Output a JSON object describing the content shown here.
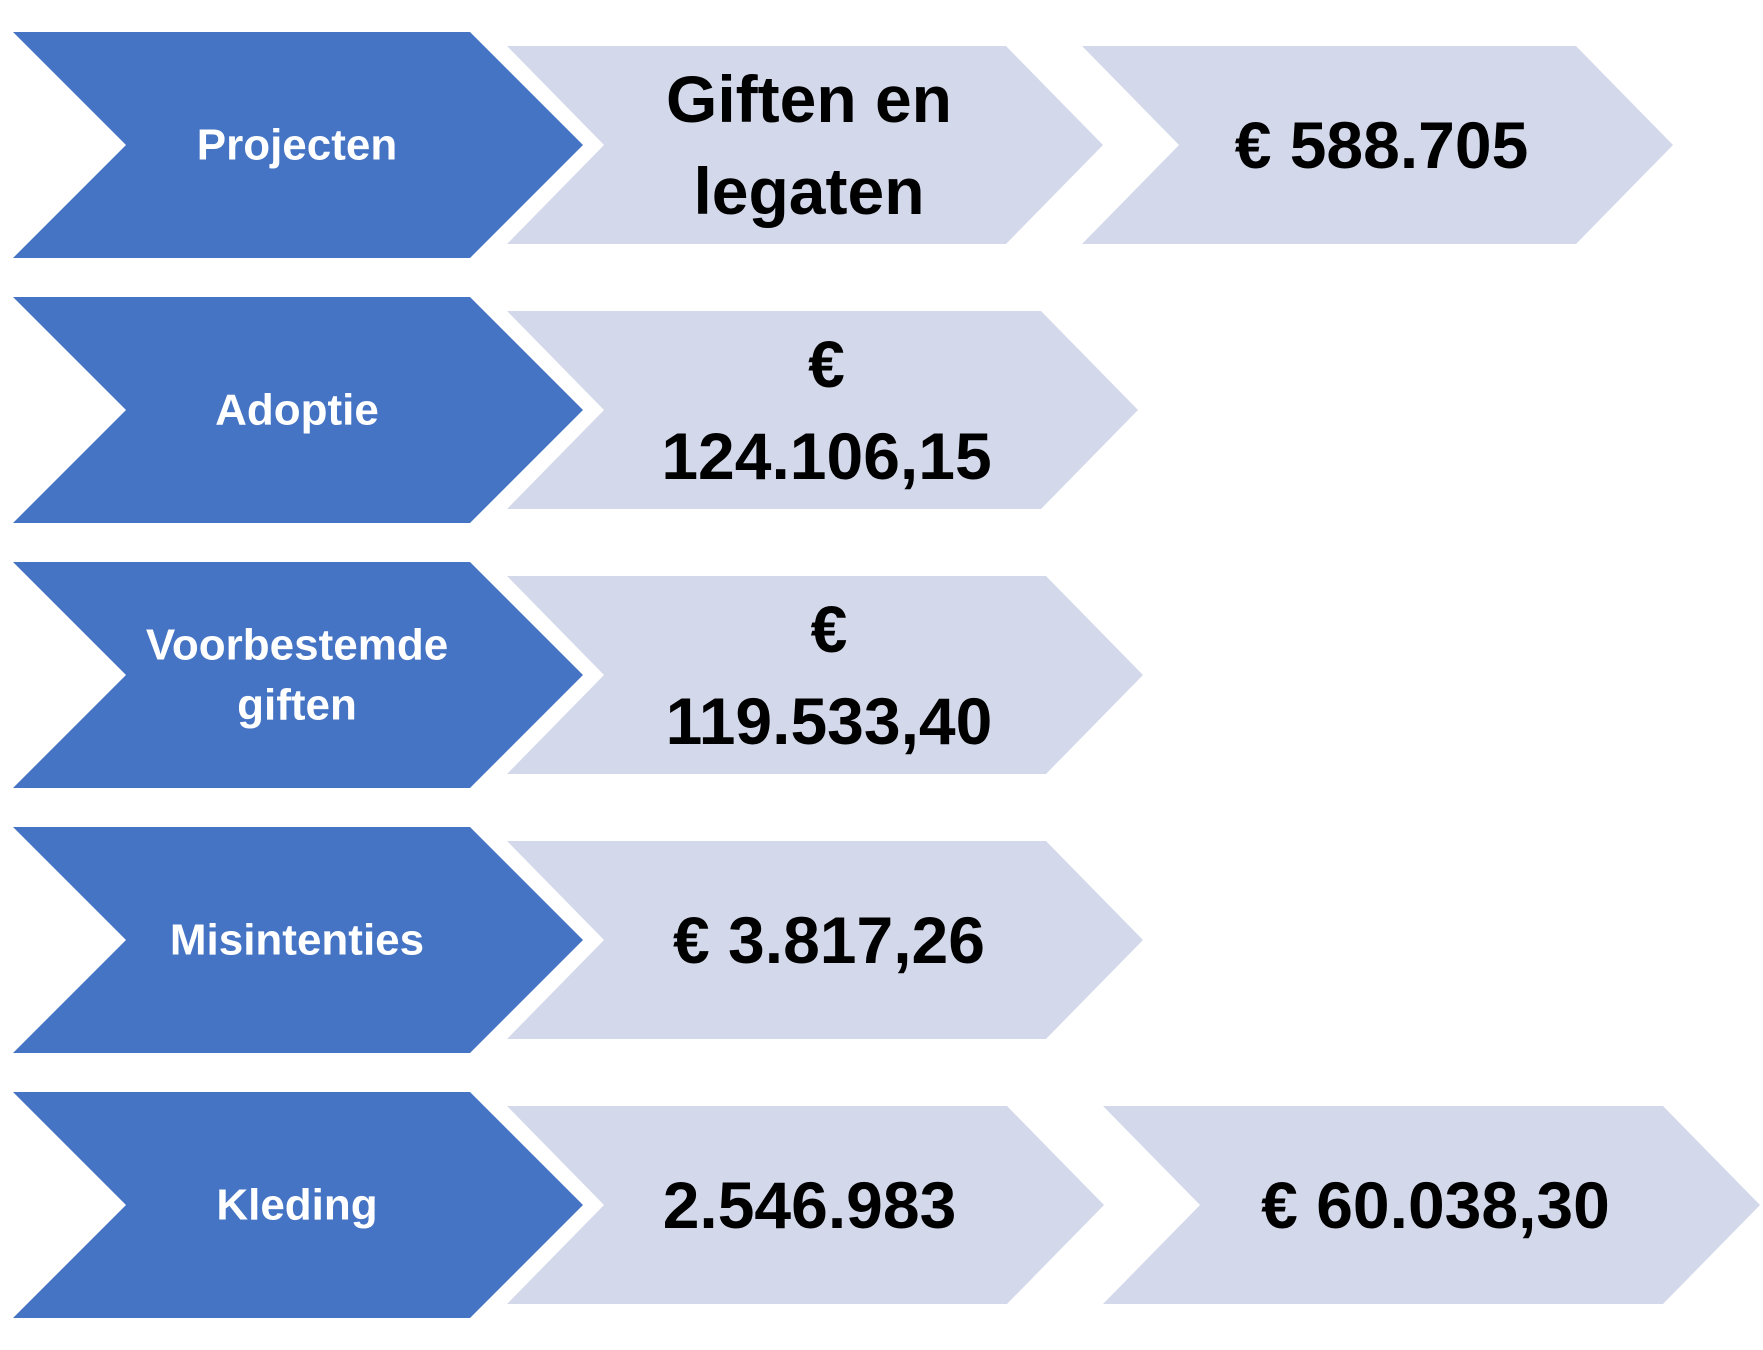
{
  "colors": {
    "category_fill": "#4574c4",
    "value_fill": "#d3d9eb",
    "category_text": "#ffffff",
    "value_text": "#000000"
  },
  "rows": [
    {
      "category": [
        "Projecten"
      ],
      "values": [
        [
          "Giften en",
          "legaten"
        ],
        [
          "€ 588.705"
        ]
      ]
    },
    {
      "category": [
        "Adoptie"
      ],
      "values": [
        [
          "€",
          "124.106,15"
        ]
      ]
    },
    {
      "category": [
        "Voorbestemde",
        "giften"
      ],
      "values": [
        [
          "€",
          "119.533,40"
        ]
      ]
    },
    {
      "category": [
        "Misintenties"
      ],
      "values": [
        [
          "€ 3.817,26"
        ]
      ]
    },
    {
      "category": [
        "Kleding"
      ],
      "values": [
        [
          "2.546.983"
        ],
        [
          "€ 60.038,30"
        ]
      ]
    }
  ]
}
